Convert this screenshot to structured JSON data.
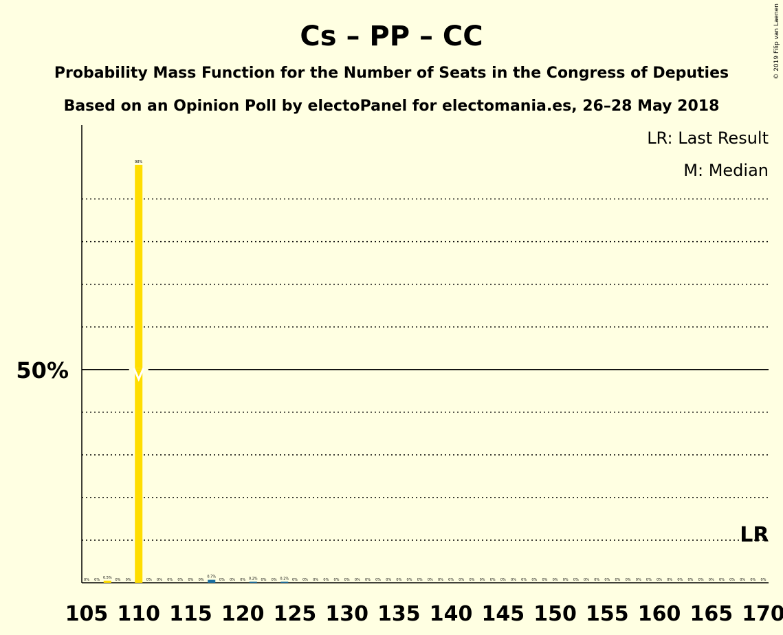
{
  "chart_data": {
    "type": "bar",
    "title": "Cs – PP – CC",
    "subtitle1": "Probability Mass Function for the Number of Seats in the Congress of Deputies",
    "subtitle2": "Based on an Opinion Poll by electoPanel for electomania.es, 26–28 May 2018",
    "copyright": "© 2019 Filip van Laenen",
    "legend": {
      "lr": "LR: Last Result",
      "m": "M: Median",
      "placement": "top-right"
    },
    "y_marker_label": "50%",
    "y_marker_value": 50,
    "ylim": [
      0,
      100
    ],
    "grid": "dotted every 10%",
    "xlim": [
      105,
      170
    ],
    "x_ticks": [
      105,
      110,
      115,
      120,
      125,
      130,
      135,
      140,
      145,
      150,
      155,
      160,
      165,
      170
    ],
    "median_seat": 110,
    "median_marker_label": "M",
    "last_result_seat": 169,
    "last_result_label": "LR",
    "bar_colors": {
      "main": "#ffdd00",
      "other": "#1a6fa0"
    },
    "bars": [
      {
        "x": 107,
        "value": 0.5,
        "label": "0.5%",
        "color": "#ffdd00"
      },
      {
        "x": 110,
        "value": 98,
        "label": "98%",
        "color": "#ffdd00"
      },
      {
        "x": 117,
        "value": 0.7,
        "label": "0.7%",
        "color": "#1a6fa0"
      },
      {
        "x": 121,
        "value": 0.2,
        "label": "0.2%",
        "color": "#1a6fa0"
      },
      {
        "x": 124,
        "value": 0.2,
        "label": "0.2%",
        "color": "#1a6fa0"
      }
    ],
    "zero_label": "0%",
    "zero_label_seats": [
      105,
      106,
      108,
      109,
      111,
      112,
      113,
      114,
      115,
      116,
      118,
      119,
      120,
      122,
      123,
      125,
      126,
      127,
      128,
      129,
      130,
      131,
      132,
      133,
      134,
      135,
      136,
      137,
      138,
      139,
      140,
      141,
      142,
      143,
      144,
      145,
      146,
      147,
      148,
      149,
      150,
      151,
      152,
      153,
      154,
      155,
      156,
      157,
      158,
      159,
      160,
      161,
      162,
      163,
      164,
      165,
      166,
      167,
      168,
      169,
      170
    ]
  }
}
